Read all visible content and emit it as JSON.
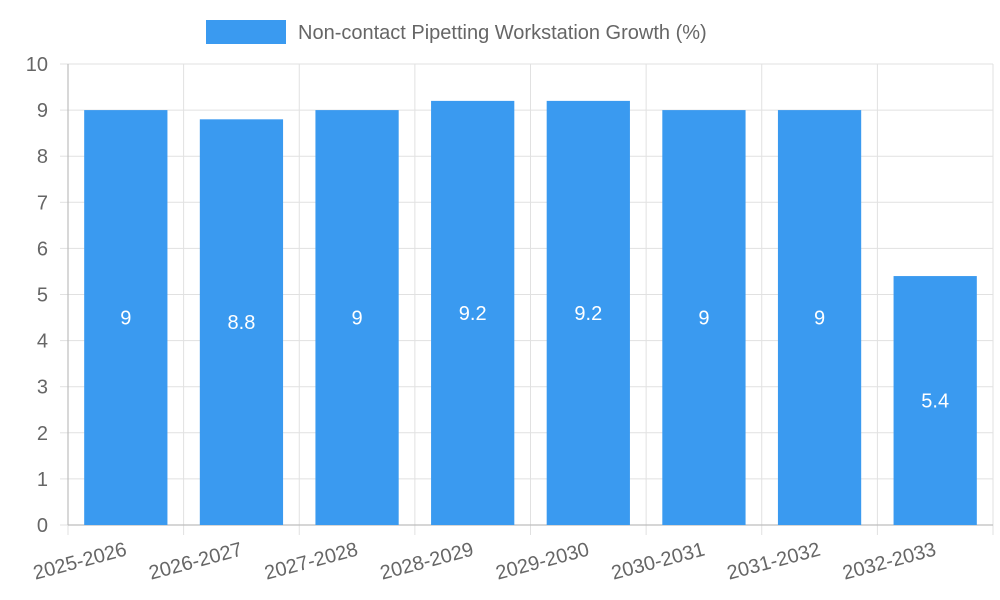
{
  "chart_data": {
    "type": "bar",
    "title": "",
    "xlabel": "",
    "ylabel": "",
    "categories": [
      "2025-2026",
      "2026-2027",
      "2027-2028",
      "2028-2029",
      "2029-2030",
      "2030-2031",
      "2031-2032",
      "2032-2033"
    ],
    "series": [
      {
        "name": "Non-contact Pipetting Workstation Growth (%)",
        "values": [
          9,
          8.8,
          9,
          9.2,
          9.2,
          9,
          9,
          5.4
        ]
      }
    ],
    "ylim": [
      0,
      10
    ],
    "yticks": [
      0,
      1,
      2,
      3,
      4,
      5,
      6,
      7,
      8,
      9,
      10
    ],
    "grid": true,
    "legend_position": "top-center",
    "colors": {
      "bar": "#3a9af0",
      "grid": "#e1e1e1",
      "text": "#666666",
      "label": "#ffffff"
    }
  }
}
